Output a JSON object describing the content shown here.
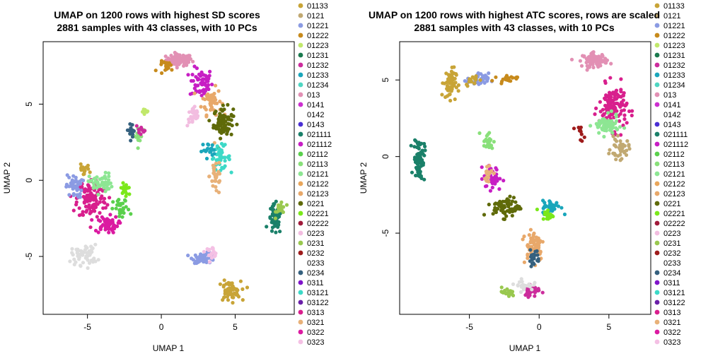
{
  "chart_data": [
    {
      "type": "scatter",
      "title": "UMAP on 1200 rows with highest SD scores",
      "subtitle": "2881 samples with 43 classes, with 10 PCs",
      "xlabel": "UMAP 1",
      "ylabel": "UMAP 2",
      "xlim": [
        -8,
        9
      ],
      "ylim": [
        -8.8,
        9.1
      ],
      "xticks": [
        -5,
        0,
        5
      ],
      "yticks": [
        -5,
        0,
        5
      ],
      "clusters": [
        {
          "cls": 9,
          "cx": 1.2,
          "cy": 7.9,
          "sx": 0.8,
          "sy": 0.35,
          "n": 90
        },
        {
          "cls": 14,
          "cx": 2.7,
          "cy": 6.4,
          "sx": 0.7,
          "sy": 0.9,
          "n": 60
        },
        {
          "cls": 19,
          "cx": 3.4,
          "cy": 5.2,
          "sx": 0.6,
          "sy": 0.8,
          "n": 50
        },
        {
          "cls": 20,
          "cx": 4.2,
          "cy": 3.8,
          "sx": 0.6,
          "sy": 0.9,
          "n": 80
        },
        {
          "cls": 29,
          "cx": 4.0,
          "cy": 1.5,
          "sx": 0.6,
          "sy": 0.7,
          "n": 40
        },
        {
          "cls": 23,
          "cx": 2.2,
          "cy": 4.2,
          "sx": 0.4,
          "sy": 0.6,
          "n": 30
        },
        {
          "cls": 32,
          "cx": 3.7,
          "cy": 0.3,
          "sx": 0.4,
          "sy": 1.2,
          "n": 30
        },
        {
          "cls": 13,
          "cx": 7.7,
          "cy": -2.6,
          "sx": 0.4,
          "sy": 0.9,
          "n": 60
        },
        {
          "cls": 24,
          "cx": 8.1,
          "cy": -1.8,
          "sx": 0.3,
          "sy": 0.5,
          "n": 20
        },
        {
          "cls": 2,
          "cx": 2.9,
          "cy": -5.1,
          "sx": 0.7,
          "sy": 0.3,
          "n": 50
        },
        {
          "cls": 34,
          "cx": 3.4,
          "cy": -4.7,
          "sx": 0.4,
          "sy": 0.3,
          "n": 20
        },
        {
          "cls": 0,
          "cx": 4.6,
          "cy": -7.3,
          "sx": 0.7,
          "sy": 0.6,
          "n": 60
        },
        {
          "cls": 31,
          "cx": -4.7,
          "cy": -1.2,
          "sx": 0.9,
          "sy": 1.2,
          "n": 120
        },
        {
          "cls": 33,
          "cx": -3.7,
          "cy": -2.9,
          "sx": 0.7,
          "sy": 0.5,
          "n": 60
        },
        {
          "cls": 37,
          "cx": -5.9,
          "cy": -0.4,
          "sx": 0.5,
          "sy": 0.7,
          "n": 40
        },
        {
          "cls": 17,
          "cx": -4.1,
          "cy": -0.2,
          "sx": 0.7,
          "sy": 0.6,
          "n": 50
        },
        {
          "cls": 15,
          "cx": -2.7,
          "cy": -1.9,
          "sx": 0.5,
          "sy": 0.6,
          "n": 30
        },
        {
          "cls": 21,
          "cx": -2.4,
          "cy": -0.6,
          "sx": 0.4,
          "sy": 0.5,
          "n": 20
        },
        {
          "cls": 26,
          "cx": -5.2,
          "cy": -4.9,
          "sx": 0.8,
          "sy": 0.6,
          "n": 50
        },
        {
          "cls": 35,
          "cx": -5.3,
          "cy": 0.7,
          "sx": 0.4,
          "sy": 0.3,
          "n": 15
        },
        {
          "cls": 16,
          "cx": -1.6,
          "cy": 2.9,
          "sx": 0.3,
          "sy": 0.6,
          "n": 20
        },
        {
          "cls": 27,
          "cx": -2.0,
          "cy": 3.3,
          "sx": 0.3,
          "sy": 0.4,
          "n": 15
        },
        {
          "cls": 41,
          "cx": -1.4,
          "cy": 3.2,
          "sx": 0.3,
          "sy": 0.3,
          "n": 10
        },
        {
          "cls": 42,
          "cx": 3.2,
          "cy": 2.0,
          "sx": 0.4,
          "sy": 0.4,
          "n": 20
        },
        {
          "cls": 4,
          "cx": -1.0,
          "cy": 4.5,
          "sx": 0.3,
          "sy": 0.2,
          "n": 10
        },
        {
          "cls": 38,
          "cx": 0.4,
          "cy": 7.5,
          "sx": 0.5,
          "sy": 0.3,
          "n": 20
        }
      ]
    },
    {
      "type": "scatter",
      "title": "UMAP on 1200 rows with highest ATC scores, rows are scaled",
      "subtitle": "2881 samples with 43 classes, with 10 PCs",
      "xlabel": "UMAP 1",
      "ylabel": "UMAP 2",
      "xlim": [
        -10,
        8
      ],
      "ylim": [
        -10.3,
        7.5
      ],
      "xticks": [
        -5,
        0,
        5
      ],
      "yticks": [
        -5,
        0,
        5
      ],
      "clusters": [
        {
          "cls": 9,
          "cx": 4.0,
          "cy": 6.3,
          "sx": 0.8,
          "sy": 0.4,
          "n": 80
        },
        {
          "cls": 31,
          "cx": 5.3,
          "cy": 3.2,
          "sx": 0.9,
          "sy": 1.3,
          "n": 130
        },
        {
          "cls": 17,
          "cx": 4.8,
          "cy": 2.0,
          "sx": 0.8,
          "sy": 0.6,
          "n": 70
        },
        {
          "cls": 36,
          "cx": 5.8,
          "cy": 0.5,
          "sx": 0.6,
          "sy": 0.6,
          "n": 40
        },
        {
          "cls": 13,
          "cx": -8.6,
          "cy": -0.2,
          "sx": 0.35,
          "sy": 1.3,
          "n": 80
        },
        {
          "cls": 0,
          "cx": -6.4,
          "cy": 4.8,
          "sx": 0.4,
          "sy": 0.9,
          "n": 60
        },
        {
          "cls": 2,
          "cx": -4.4,
          "cy": 5.0,
          "sx": 0.7,
          "sy": 0.4,
          "n": 40
        },
        {
          "cls": 16,
          "cx": -3.7,
          "cy": 1.0,
          "sx": 0.4,
          "sy": 0.6,
          "n": 20
        },
        {
          "cls": 14,
          "cx": -3.3,
          "cy": -1.4,
          "sx": 0.6,
          "sy": 0.7,
          "n": 40
        },
        {
          "cls": 20,
          "cx": -2.3,
          "cy": -3.3,
          "sx": 0.9,
          "sy": 0.6,
          "n": 70
        },
        {
          "cls": 19,
          "cx": -0.4,
          "cy": -5.7,
          "sx": 0.7,
          "sy": 1.0,
          "n": 60
        },
        {
          "cls": 42,
          "cx": 0.9,
          "cy": -3.3,
          "sx": 0.6,
          "sy": 0.4,
          "n": 40
        },
        {
          "cls": 21,
          "cx": 0.6,
          "cy": -3.8,
          "sx": 0.4,
          "sy": 0.3,
          "n": 20
        },
        {
          "cls": 6,
          "cx": -0.5,
          "cy": -8.7,
          "sx": 0.5,
          "sy": 0.4,
          "n": 40
        },
        {
          "cls": 11,
          "cx": -1.1,
          "cy": -8.4,
          "sx": 0.6,
          "sy": 0.3,
          "n": 25
        },
        {
          "cls": 27,
          "cx": -0.4,
          "cy": -6.6,
          "sx": 0.4,
          "sy": 0.5,
          "n": 20
        },
        {
          "cls": 24,
          "cx": -2.3,
          "cy": -8.9,
          "sx": 0.5,
          "sy": 0.3,
          "n": 20
        },
        {
          "cls": 32,
          "cx": -3.7,
          "cy": -1.1,
          "sx": 0.4,
          "sy": 0.6,
          "n": 20
        },
        {
          "cls": 35,
          "cx": -4.8,
          "cy": 5.0,
          "sx": 0.4,
          "sy": 0.3,
          "n": 15
        },
        {
          "cls": 38,
          "cx": -2.3,
          "cy": 5.1,
          "sx": 0.7,
          "sy": 0.2,
          "n": 20
        },
        {
          "cls": 25,
          "cx": 2.9,
          "cy": 1.5,
          "sx": 0.3,
          "sy": 0.4,
          "n": 10
        }
      ]
    }
  ],
  "legend": {
    "labels": [
      "01133",
      "0121",
      "01221",
      "01222",
      "01223",
      "01231",
      "01232",
      "01233",
      "01234",
      "013",
      "0141",
      "0142",
      "0143",
      "021111",
      "021112",
      "02112",
      "02113",
      "02121",
      "02122",
      "02123",
      "0221",
      "02221",
      "02222",
      "0223",
      "0231",
      "0232",
      "0233",
      "0234",
      "0311",
      "03121",
      "03122",
      "0313",
      "0321",
      "0322",
      "0323"
    ],
    "colors": [
      "#c8a437",
      "#c1a972",
      "#8b9be3",
      "#c78a1c",
      "#c1e86b",
      "#1a7a4e",
      "#cc2c9c",
      "#1aa6bb",
      "#4fd6c2",
      "#e290b4",
      "#cc2fcf",
      "#ffffff",
      "#4a2fd4",
      "#1a8069",
      "#c71ec4",
      "#5ad04c",
      "#89e07a",
      "#8de693",
      "#e9a65b",
      "#e8a86a",
      "#5f6a09",
      "#7be81b",
      "#a01a3a",
      "#f2bde0",
      "#99c84f",
      "#9e1b1b",
      "#ffffff",
      "#35607e",
      "#7f14c9",
      "#3cd9c7",
      "#6a1fa8",
      "#d81f8d",
      "#e8b179",
      "#db1aa1",
      "#f4c0e4"
    ],
    "extra_colors": [
      "#e1a33a",
      "#3a9e6c",
      "#e31a1c",
      "#6fb14a"
    ]
  }
}
